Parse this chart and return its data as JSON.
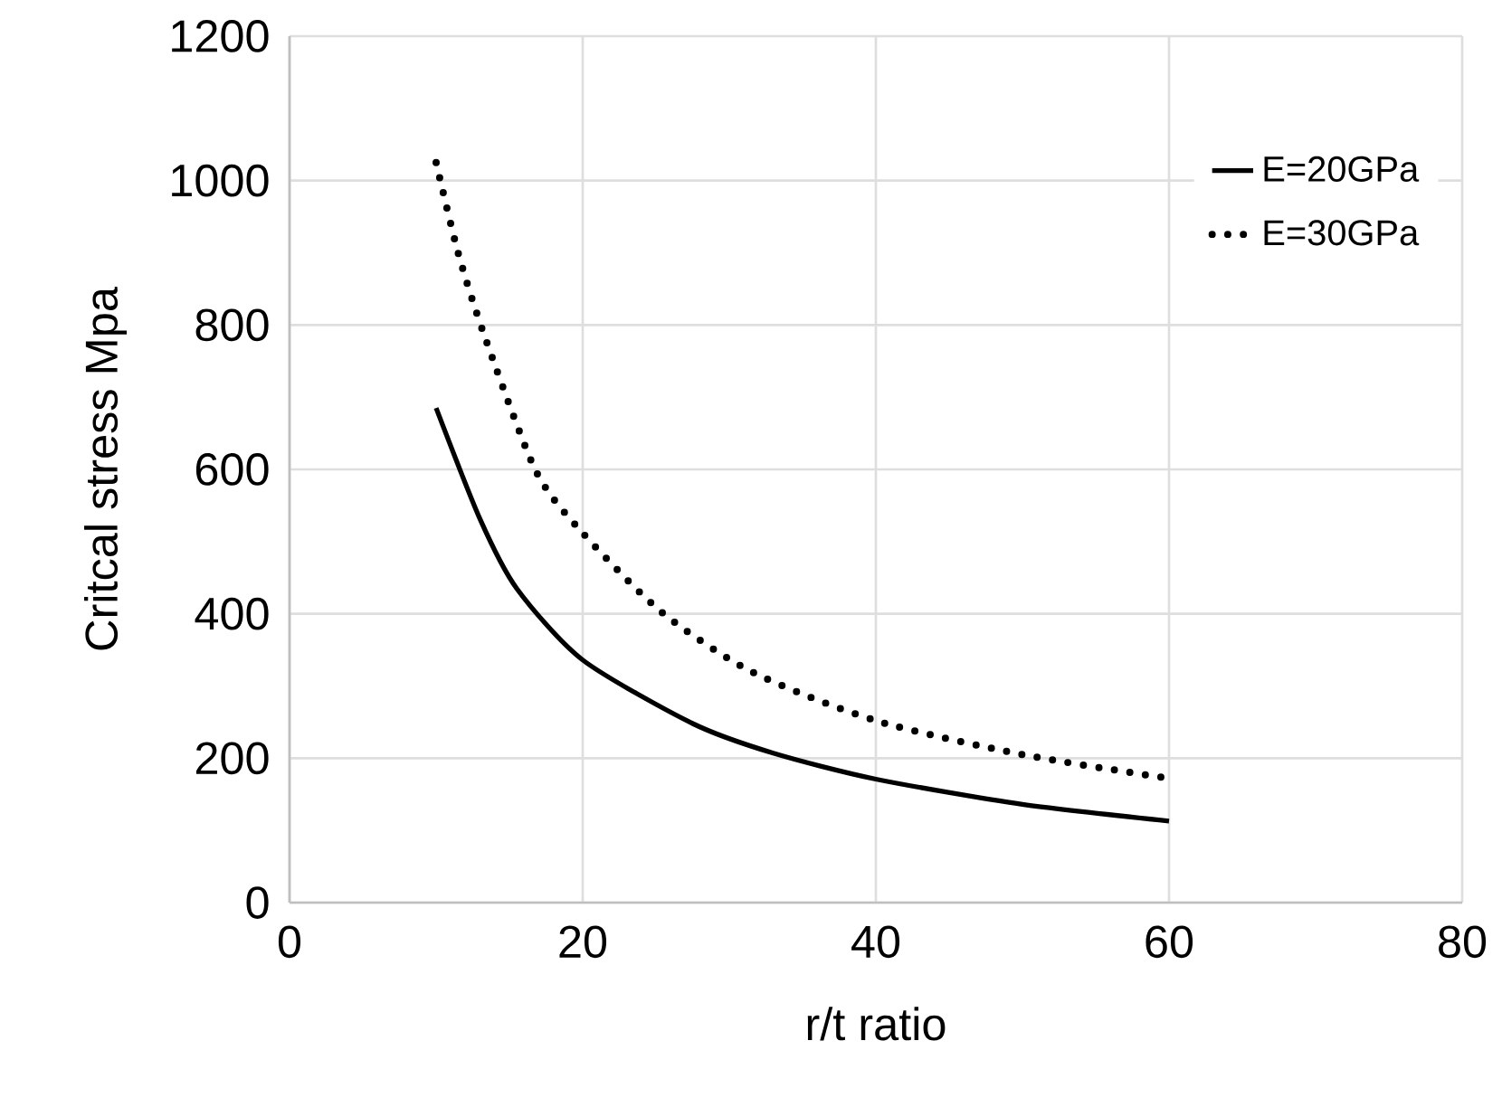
{
  "chart_data": {
    "type": "line",
    "xlabel": "r/t ratio",
    "ylabel": "Critcal stress Mpa",
    "xlim": [
      0,
      80
    ],
    "xticks": [
      0,
      20,
      40,
      60,
      80
    ],
    "ylim": [
      0,
      1200
    ],
    "yticks": [
      0,
      200,
      400,
      600,
      800,
      1000,
      1200
    ],
    "grid": true,
    "legend": "top right",
    "series": [
      {
        "name": "E=20GPa",
        "color": "#000000",
        "line_style": "solid",
        "x": [
          10,
          13,
          15.5,
          20,
          27.5,
          33,
          40,
          50,
          60
        ],
        "values": [
          685,
          531,
          435,
          336,
          248,
          207,
          171,
          136,
          113
        ]
      },
      {
        "name": "E=30GPa",
        "color": "#000000",
        "line_style": "dotted",
        "x": [
          10,
          11.5,
          13.3,
          16.8,
          20,
          25.4,
          31.6,
          40,
          50,
          60
        ],
        "values": [
          1025,
          900,
          785,
          598,
          512,
          402,
          319,
          252,
          205,
          172
        ]
      }
    ]
  }
}
